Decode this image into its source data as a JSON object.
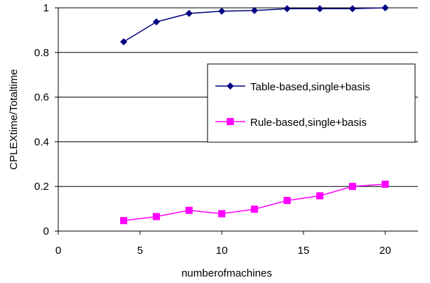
{
  "chart_data": {
    "type": "line",
    "xlabel": "numberofmachines",
    "ylabel": "CPLEXtime/Totaltime",
    "xlim": [
      0,
      22
    ],
    "ylim": [
      0,
      1
    ],
    "xticks": [
      "0",
      "5",
      "10",
      "15",
      "20"
    ],
    "yticks": [
      "0",
      "0.2",
      "0.4",
      "0.6",
      "0.8",
      "1"
    ],
    "grid": "horizontal",
    "legend_position": "right",
    "series": [
      {
        "name": "Table-based,single+basis",
        "color": "#000080",
        "marker": "diamond",
        "x": [
          4,
          6,
          8,
          10,
          12,
          14,
          16,
          18,
          20
        ],
        "y": [
          0.848,
          0.937,
          0.975,
          0.985,
          0.988,
          0.996,
          0.996,
          0.996,
          1.0
        ]
      },
      {
        "name": "Rule-based,single+basis",
        "color": "#ff00ff",
        "marker": "square",
        "x": [
          4,
          6,
          8,
          10,
          12,
          14,
          16,
          18,
          20
        ],
        "y": [
          0.047,
          0.065,
          0.093,
          0.078,
          0.098,
          0.137,
          0.158,
          0.2,
          0.21
        ]
      }
    ]
  }
}
